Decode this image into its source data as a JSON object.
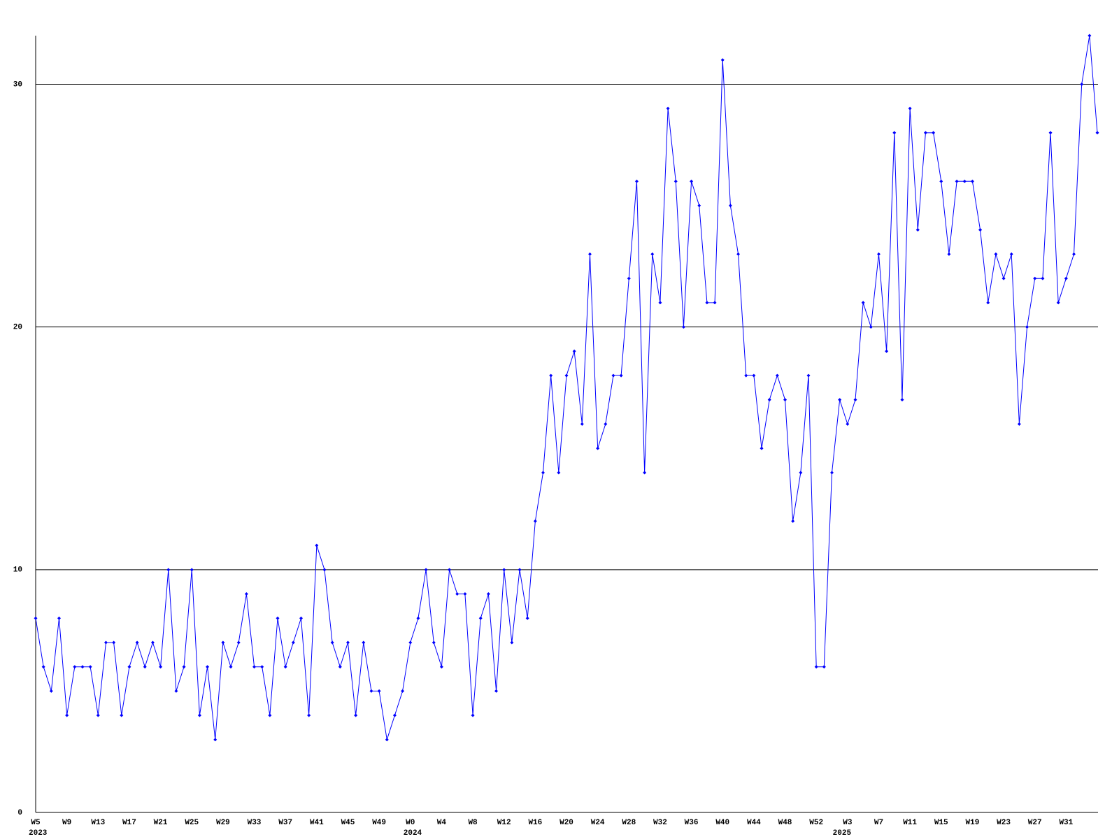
{
  "chart_data": {
    "type": "line",
    "categories": [
      "W5",
      null,
      null,
      null,
      "W9",
      null,
      null,
      null,
      "W13",
      null,
      null,
      null,
      "W17",
      null,
      null,
      null,
      "W21",
      null,
      null,
      null,
      "W25",
      null,
      null,
      null,
      "W29",
      null,
      null,
      null,
      "W33",
      null,
      null,
      null,
      "W37",
      null,
      null,
      null,
      "W41",
      null,
      null,
      null,
      "W45",
      null,
      null,
      null,
      "W49",
      null,
      null,
      null,
      "W0",
      null,
      null,
      null,
      "W4",
      null,
      null,
      null,
      "W8",
      null,
      null,
      null,
      "W12",
      null,
      null,
      null,
      "W16",
      null,
      null,
      null,
      "W20",
      null,
      null,
      null,
      "W24",
      null,
      null,
      null,
      "W28",
      null,
      null,
      null,
      "W32",
      null,
      null,
      null,
      "W36",
      null,
      null,
      null,
      "W40",
      null,
      null,
      null,
      "W44",
      null,
      null,
      null,
      "W48",
      null,
      null,
      null,
      "W52",
      null,
      null,
      null,
      "W3",
      null,
      null,
      null,
      "W7",
      null,
      null,
      null,
      "W11",
      null,
      null,
      null,
      "W15",
      null,
      null,
      null,
      "W19",
      null,
      null,
      null,
      "W23",
      null,
      null,
      null,
      "W27",
      null,
      null,
      null,
      "W31",
      null,
      null,
      null,
      null
    ],
    "category_years": [
      "2023",
      null,
      null,
      null,
      null,
      null,
      null,
      null,
      null,
      null,
      null,
      null,
      null,
      null,
      null,
      null,
      null,
      null,
      null,
      null,
      null,
      null,
      null,
      null,
      null,
      null,
      null,
      null,
      null,
      null,
      null,
      null,
      null,
      null,
      null,
      null,
      null,
      null,
      null,
      null,
      null,
      null,
      null,
      null,
      null,
      null,
      null,
      null,
      "2024",
      null,
      null,
      null,
      null,
      null,
      null,
      null,
      null,
      null,
      null,
      null,
      null,
      null,
      null,
      null,
      null,
      null,
      null,
      null,
      null,
      null,
      null,
      null,
      null,
      null,
      null,
      null,
      null,
      null,
      null,
      null,
      null,
      null,
      null,
      null,
      null,
      null,
      null,
      null,
      null,
      null,
      null,
      null,
      null,
      null,
      null,
      null,
      null,
      null,
      null,
      null,
      null,
      null,
      null,
      "2025",
      null,
      null,
      null,
      null,
      null,
      null,
      null,
      null,
      null,
      null,
      null,
      null,
      null,
      null,
      null,
      null,
      null,
      null,
      null,
      null,
      null,
      null,
      null,
      null,
      null,
      null,
      null,
      null,
      null,
      null,
      null,
      null,
      null,
      null,
      null
    ],
    "series": [
      {
        "color": "#0000ff",
        "values": [
          8,
          6,
          5,
          8,
          4,
          6,
          6,
          6,
          4,
          7,
          7,
          4,
          6,
          7,
          6,
          7,
          6,
          10,
          5,
          6,
          10,
          4,
          6,
          3,
          7,
          6,
          7,
          9,
          6,
          6,
          4,
          8,
          6,
          7,
          8,
          4,
          11,
          10,
          7,
          6,
          7,
          4,
          7,
          5,
          5,
          3,
          4,
          5,
          7,
          8,
          10,
          7,
          6,
          10,
          9,
          9,
          4,
          8,
          9,
          5,
          10,
          7,
          10,
          8,
          12,
          14,
          18,
          14,
          18,
          19,
          16,
          23,
          15,
          16,
          18,
          18,
          22,
          26,
          14,
          23,
          21,
          29,
          26,
          20,
          26,
          25,
          21,
          21,
          31,
          25,
          23,
          18,
          18,
          15,
          17,
          18,
          17,
          12,
          14,
          18,
          6,
          6,
          14,
          17,
          16,
          17,
          21,
          20,
          23,
          19,
          28,
          17,
          29,
          24,
          28,
          28,
          26,
          23,
          26,
          26,
          26,
          24,
          21,
          23,
          22,
          23,
          16,
          20,
          22,
          22,
          28,
          21,
          22,
          23,
          30,
          32,
          28
        ]
      }
    ],
    "ylim": [
      0,
      32
    ],
    "yticks": [
      0,
      10,
      20,
      30
    ],
    "grid": true
  }
}
